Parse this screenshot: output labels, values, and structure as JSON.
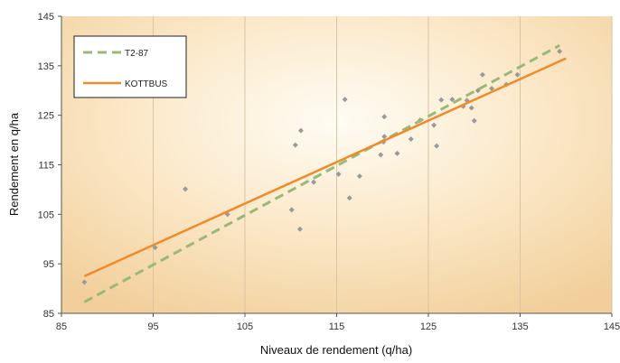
{
  "chart_data": {
    "type": "scatter",
    "title": "",
    "xlabel": "Niveaux de rendement (q/ha)",
    "ylabel": "Rendement en q/ha",
    "xlim": [
      85,
      145
    ],
    "ylim": [
      85,
      145
    ],
    "xticks": [
      85,
      95,
      105,
      115,
      125,
      135,
      145
    ],
    "yticks": [
      85,
      95,
      105,
      115,
      125,
      135,
      145
    ],
    "grid": "vertical",
    "legend_position": "top-left",
    "points": {
      "color": "#9a9a9a",
      "x": [
        87.5,
        95.2,
        98.5,
        103.1,
        110.1,
        110.5,
        111.0,
        111.1,
        112.5,
        115.2,
        115.9,
        116.4,
        117.5,
        119.8,
        120.1,
        120.2,
        120.2,
        121.6,
        123.1,
        124.1,
        125.6,
        125.9,
        126.4,
        127.6,
        128.8,
        129.2,
        129.7,
        130.0,
        130.4,
        130.9,
        131.9,
        133.5,
        134.7,
        139.3
      ],
      "y": [
        91.3,
        98.3,
        110.1,
        105.0,
        105.9,
        119.0,
        102.0,
        121.9,
        111.5,
        113.1,
        128.2,
        108.3,
        112.7,
        117.0,
        119.6,
        124.7,
        120.7,
        117.3,
        120.2,
        124.0,
        123.0,
        118.8,
        128.1,
        128.2,
        126.8,
        128.0,
        126.5,
        123.9,
        130.0,
        133.2,
        130.4,
        131.2,
        133.2,
        137.9
      ]
    },
    "series": [
      {
        "name": "T2-87",
        "style": "dashed",
        "color": "#9bb87a",
        "x": [
          87.5,
          139.3
        ],
        "y": [
          87.3,
          139.1
        ]
      },
      {
        "name": "KOTTBUS",
        "style": "solid",
        "color": "#f08a2a",
        "x": [
          87.5,
          140.0
        ],
        "y": [
          92.5,
          136.5
        ]
      }
    ]
  }
}
